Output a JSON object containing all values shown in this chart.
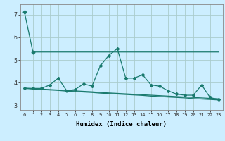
{
  "xlabel": "Humidex (Indice chaleur)",
  "bg_color": "#cceeff",
  "grid_color": "#aacccc",
  "line_color": "#1a7a6e",
  "xlim": [
    -0.5,
    23.5
  ],
  "ylim": [
    2.8,
    7.45
  ],
  "xticks": [
    0,
    1,
    2,
    3,
    4,
    5,
    6,
    7,
    8,
    9,
    10,
    11,
    12,
    13,
    14,
    15,
    16,
    17,
    18,
    19,
    20,
    21,
    22,
    23
  ],
  "yticks": [
    3,
    4,
    5,
    6,
    7
  ],
  "series1_x": [
    0,
    1,
    2,
    3,
    4,
    5,
    6,
    7,
    8,
    9,
    10,
    11,
    12,
    13,
    14,
    15,
    16,
    17,
    18,
    19,
    20,
    21,
    22,
    23
  ],
  "series1_y": [
    7.1,
    5.35,
    5.35,
    5.35,
    5.35,
    5.35,
    5.35,
    5.35,
    5.35,
    5.35,
    5.35,
    5.35,
    5.35,
    5.35,
    5.35,
    5.35,
    5.35,
    5.35,
    5.35,
    5.35,
    5.35,
    5.35,
    5.35,
    5.35
  ],
  "series2_x": [
    0,
    1,
    2,
    3,
    4,
    5,
    6,
    7,
    8,
    9,
    10,
    11,
    12,
    13,
    14,
    15,
    16,
    17,
    18,
    19,
    20,
    21,
    22,
    23
  ],
  "series2_y": [
    3.75,
    3.75,
    3.75,
    3.9,
    4.2,
    3.65,
    3.7,
    3.95,
    3.85,
    4.75,
    5.2,
    5.5,
    4.2,
    4.2,
    4.35,
    3.9,
    3.85,
    3.65,
    3.5,
    3.45,
    3.45,
    3.9,
    3.35,
    3.25
  ],
  "series3_x": [
    0,
    1,
    2,
    3,
    4,
    5,
    6,
    7,
    8,
    9,
    10,
    11,
    12,
    13,
    14,
    15,
    16,
    17,
    18,
    19,
    20,
    21,
    22,
    23
  ],
  "series3_y": [
    3.75,
    3.72,
    3.7,
    3.68,
    3.66,
    3.63,
    3.61,
    3.59,
    3.57,
    3.54,
    3.52,
    3.5,
    3.48,
    3.46,
    3.44,
    3.41,
    3.39,
    3.37,
    3.35,
    3.33,
    3.3,
    3.28,
    3.26,
    3.24
  ],
  "series4_x": [
    0,
    1,
    2,
    3,
    4,
    5,
    6,
    7,
    8,
    9,
    10,
    11,
    12,
    13,
    14,
    15,
    16,
    17,
    18,
    19,
    20,
    21,
    22,
    23
  ],
  "series4_y": [
    3.76,
    3.74,
    3.72,
    3.7,
    3.68,
    3.66,
    3.64,
    3.62,
    3.6,
    3.57,
    3.55,
    3.53,
    3.51,
    3.49,
    3.47,
    3.45,
    3.43,
    3.41,
    3.39,
    3.37,
    3.35,
    3.33,
    3.31,
    3.29
  ]
}
